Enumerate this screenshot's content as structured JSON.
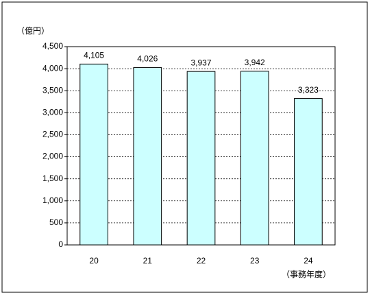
{
  "chart_data": {
    "type": "bar",
    "y_unit": "（億円）",
    "x_unit": "（事務年度）",
    "categories": [
      "20",
      "21",
      "22",
      "23",
      "24"
    ],
    "values": [
      4105,
      4026,
      3937,
      3942,
      3323
    ],
    "value_labels": [
      "4,105",
      "4,026",
      "3,937",
      "3,942",
      "3,323"
    ],
    "color": "#ccffff",
    "ylim": [
      0,
      4500
    ],
    "yticks": [
      0,
      500,
      {
        "value": 1000,
        "label": "1,000"
      },
      {
        "value": 1500,
        "label": "1,500"
      },
      {
        "value": 2000,
        "label": "2,000"
      },
      {
        "value": 2500,
        "label": "2,500"
      },
      {
        "value": 3000,
        "label": "3,000"
      },
      {
        "value": 3500,
        "label": "3,500"
      },
      {
        "value": 4000,
        "label": "4,000"
      },
      {
        "value": 4500,
        "label": "4,500"
      }
    ],
    "grid": true
  }
}
